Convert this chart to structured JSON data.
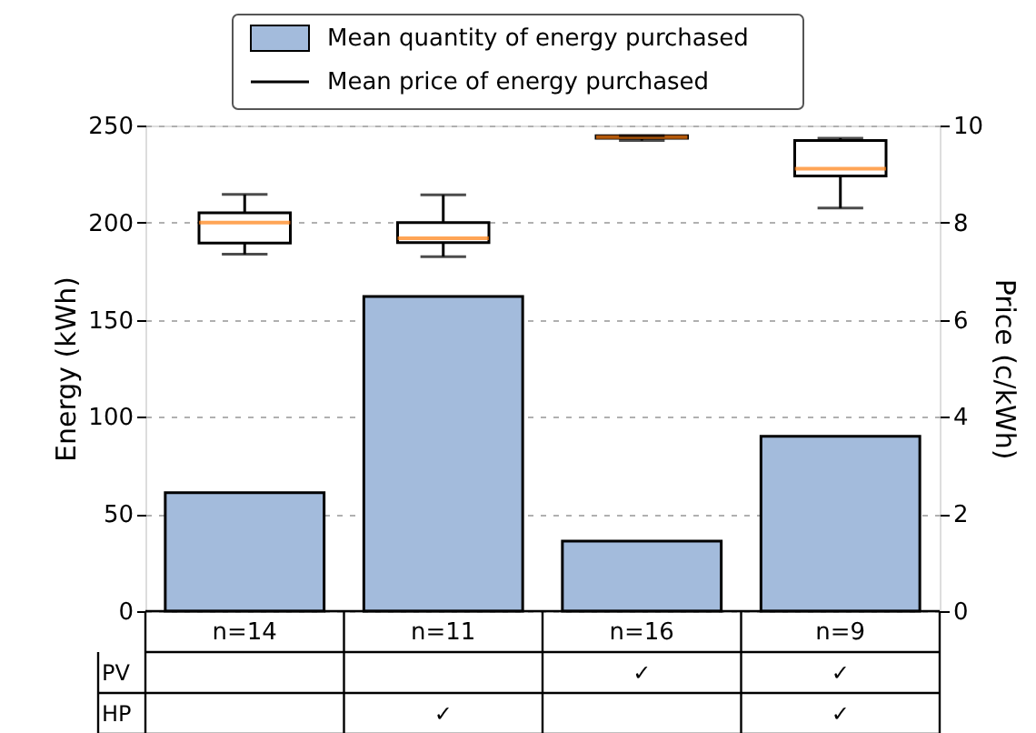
{
  "chart_data": [
    {
      "type": "bar",
      "categories": [
        "n=14",
        "n=11",
        "n=16",
        "n=9"
      ],
      "ylabel": "Energy (kWh)",
      "y2label": "Price (c/kWh)",
      "ylim": [
        0,
        250
      ],
      "yticks": [
        0,
        50,
        100,
        150,
        200,
        250
      ],
      "y2lim": [
        0,
        10
      ],
      "y2ticks": [
        0,
        2,
        4,
        6,
        8,
        10
      ],
      "grid": "y",
      "legend": "top",
      "series": [
        {
          "name": "Mean quantity of energy purchased",
          "color": "#a3bbdc",
          "values": [
            61,
            162,
            36,
            90
          ]
        },
        {
          "name": "Mean price of energy purchased",
          "type": "box",
          "axis": "y2",
          "color": "#000000",
          "boxes": [
            {
              "low": 7.35,
              "q1": 7.58,
              "median": 8.0,
              "q3": 8.2,
              "high": 8.58
            },
            {
              "low": 7.3,
              "q1": 7.59,
              "median": 7.68,
              "q3": 8.0,
              "high": 8.57
            },
            {
              "low": 9.69,
              "q1": 9.74,
              "median": 9.76,
              "q3": 9.79,
              "high": 9.79
            },
            {
              "low": 8.3,
              "q1": 8.96,
              "median": 9.11,
              "q3": 9.69,
              "high": 9.74
            }
          ]
        }
      ]
    },
    {
      "type": "heatmap",
      "categories": [
        null,
        null,
        null,
        null
      ],
      "y_categories": [
        "PV",
        "HP"
      ],
      "cells": [
        [
          null,
          null,
          null,
          null
        ],
        [
          null,
          null,
          null,
          null
        ]
      ],
      "cell_labels": [
        [
          null,
          null,
          "✓",
          "✓"
        ],
        [
          null,
          "✓",
          null,
          "✓"
        ]
      ],
      "tick_labels": "y"
    }
  ]
}
